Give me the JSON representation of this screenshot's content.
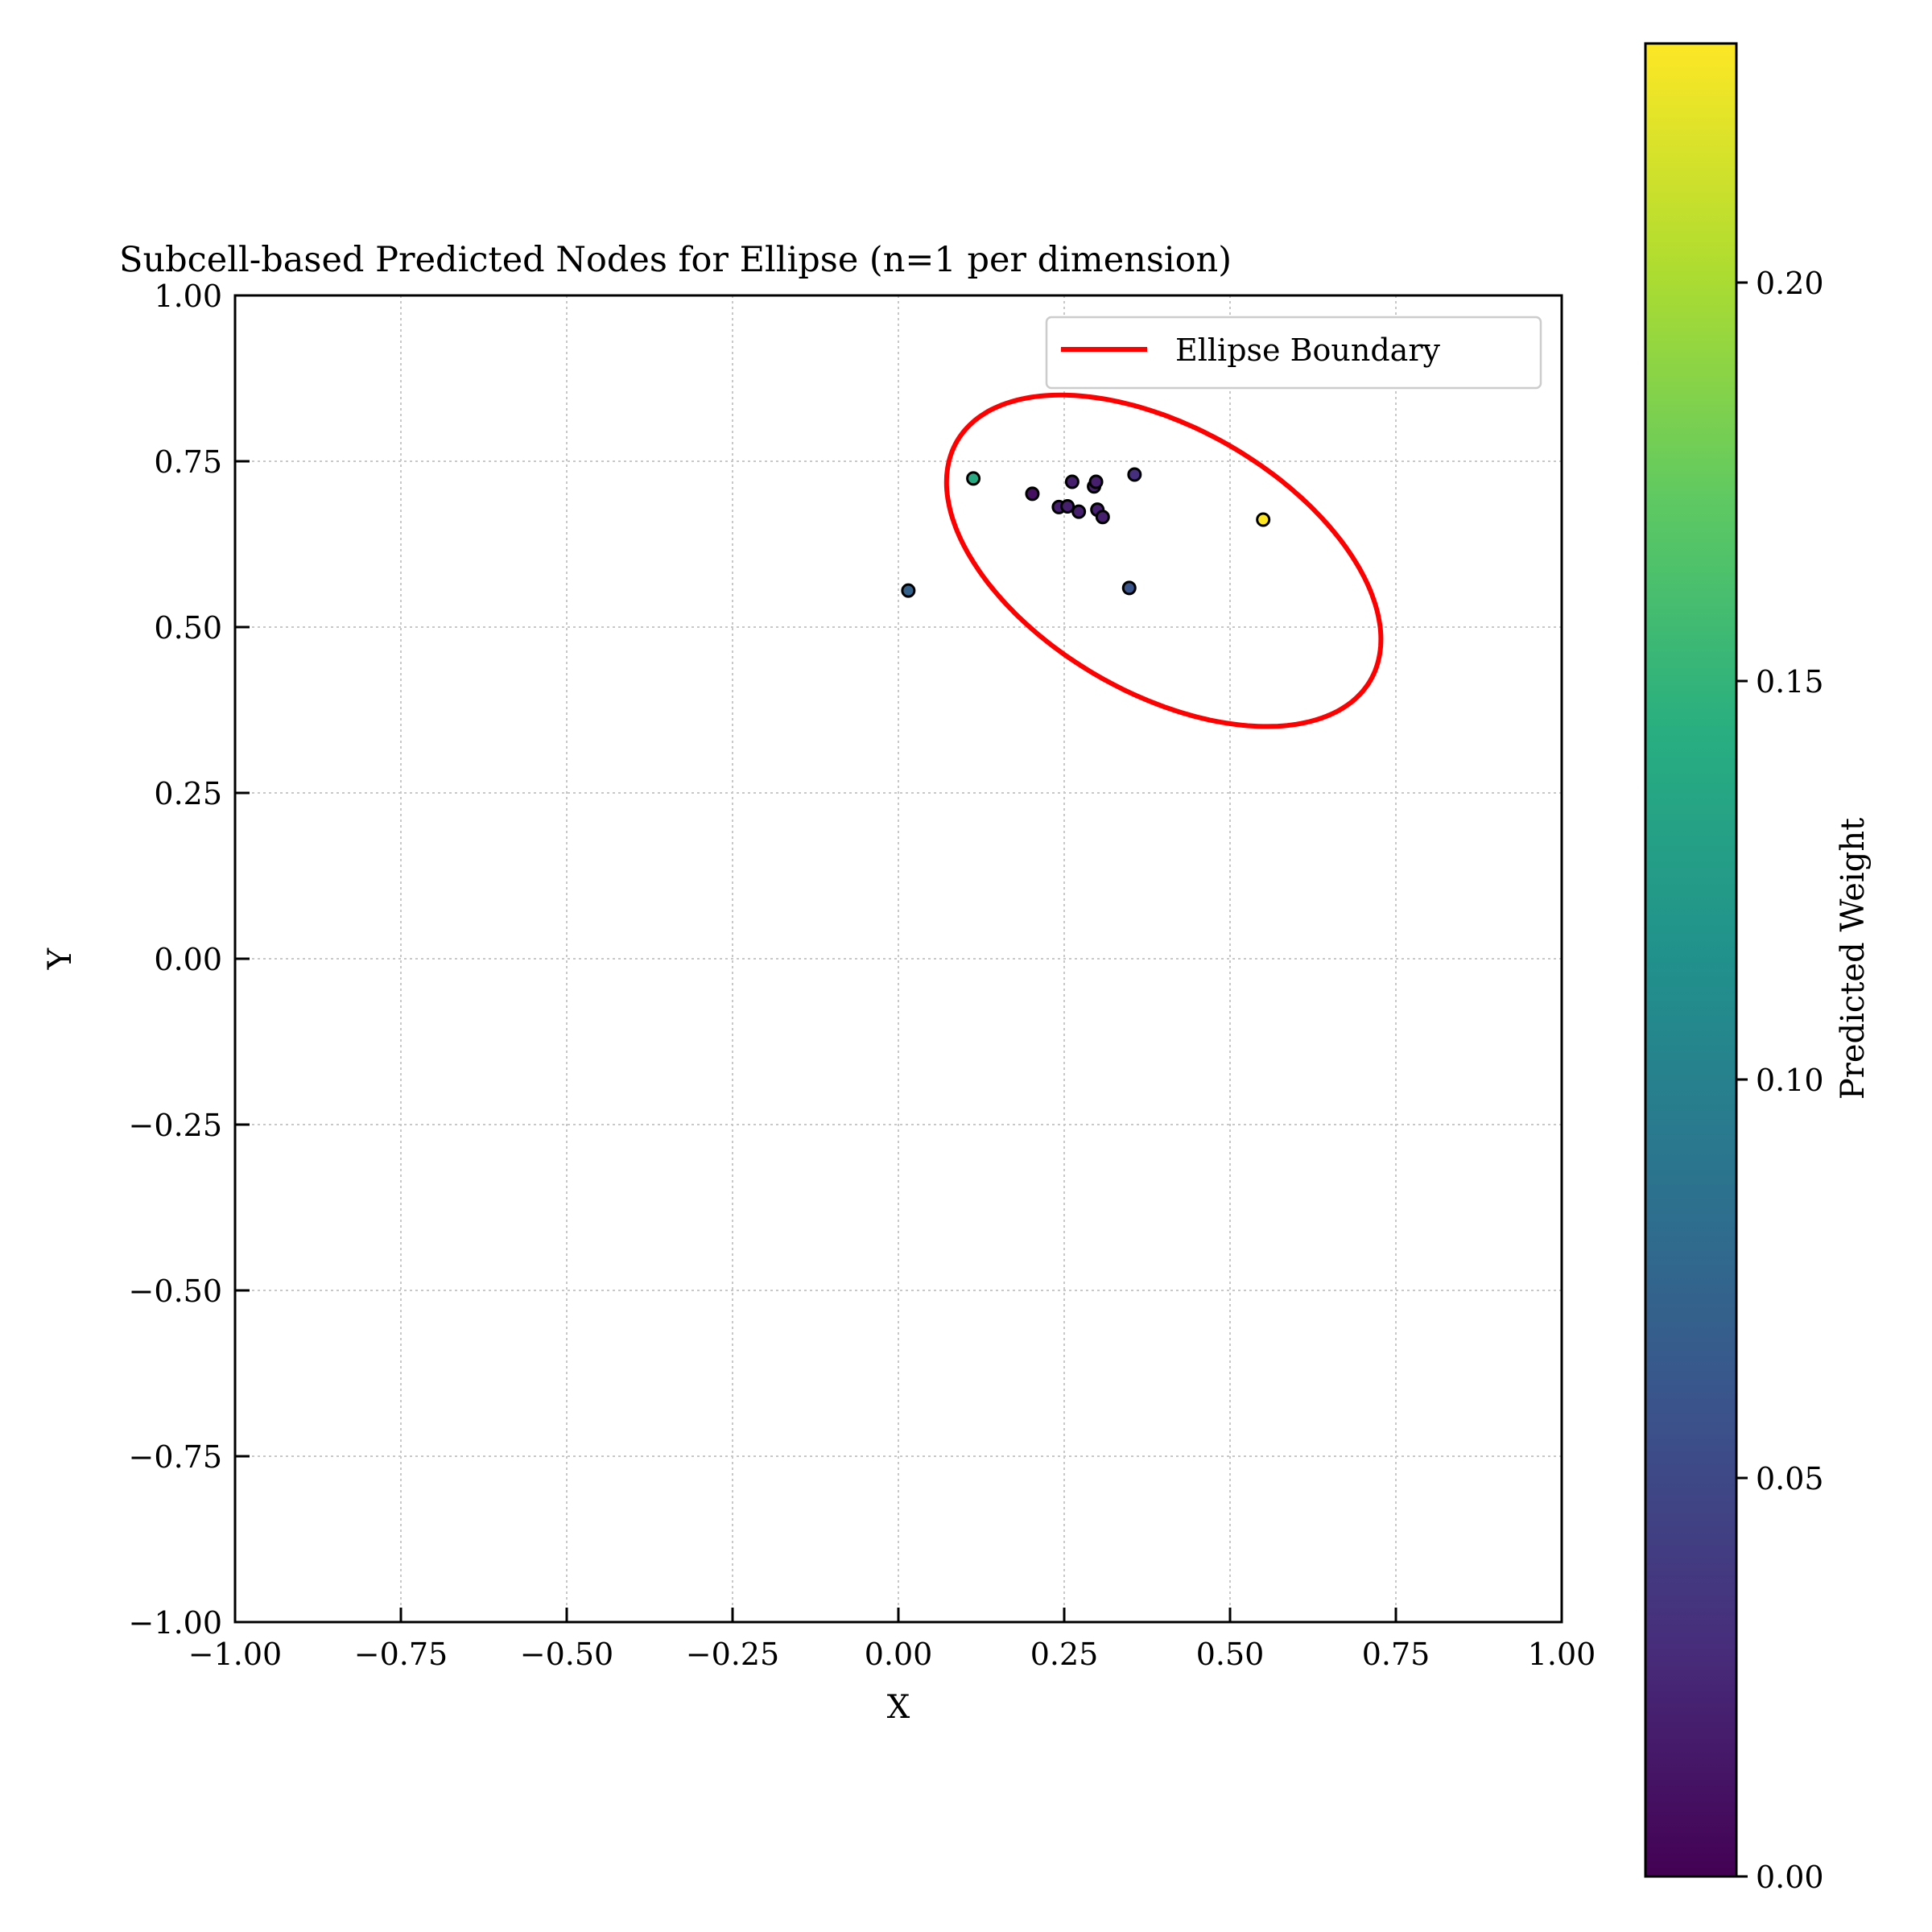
{
  "chart_data": {
    "type": "scatter",
    "title": "Subcell-based Predicted Nodes for Ellipse (n=1 per dimension)",
    "xlabel": "X",
    "ylabel": "Y",
    "xlim": [
      -1.0,
      1.0
    ],
    "ylim": [
      -1.0,
      1.0
    ],
    "xticks": [
      "−1.00",
      "−0.75",
      "−0.50",
      "−0.25",
      "0.00",
      "0.25",
      "0.50",
      "0.75",
      "1.00"
    ],
    "yticks": [
      "−1.00",
      "−0.75",
      "−0.50",
      "−0.25",
      "0.00",
      "0.25",
      "0.50",
      "0.75",
      "1.00"
    ],
    "grid": true,
    "legend": {
      "label": "Ellipse Boundary",
      "location": "top-right",
      "color": "#ff0000"
    },
    "ellipse": {
      "center": [
        0.4,
        0.6
      ],
      "semi_axes": [
        0.36,
        0.2
      ],
      "angle_deg": -30
    },
    "colorbar": {
      "label": "Predicted Weight",
      "colormap": "viridis",
      "range": [
        0.0,
        0.23
      ],
      "ticks": [
        "0.00",
        "0.05",
        "0.10",
        "0.15",
        "0.20"
      ]
    },
    "points": [
      {
        "x": 0.015,
        "y": 0.555,
        "weight": 0.07
      },
      {
        "x": 0.113,
        "y": 0.724,
        "weight": 0.14
      },
      {
        "x": 0.202,
        "y": 0.701,
        "weight": 0.01
      },
      {
        "x": 0.242,
        "y": 0.681,
        "weight": 0.02
      },
      {
        "x": 0.255,
        "y": 0.682,
        "weight": 0.02
      },
      {
        "x": 0.262,
        "y": 0.719,
        "weight": 0.02
      },
      {
        "x": 0.272,
        "y": 0.674,
        "weight": 0.02
      },
      {
        "x": 0.295,
        "y": 0.712,
        "weight": 0.02
      },
      {
        "x": 0.298,
        "y": 0.719,
        "weight": 0.02
      },
      {
        "x": 0.3,
        "y": 0.677,
        "weight": 0.02
      },
      {
        "x": 0.308,
        "y": 0.666,
        "weight": 0.02
      },
      {
        "x": 0.348,
        "y": 0.559,
        "weight": 0.06
      },
      {
        "x": 0.356,
        "y": 0.73,
        "weight": 0.03
      },
      {
        "x": 0.55,
        "y": 0.662,
        "weight": 0.23
      }
    ]
  }
}
